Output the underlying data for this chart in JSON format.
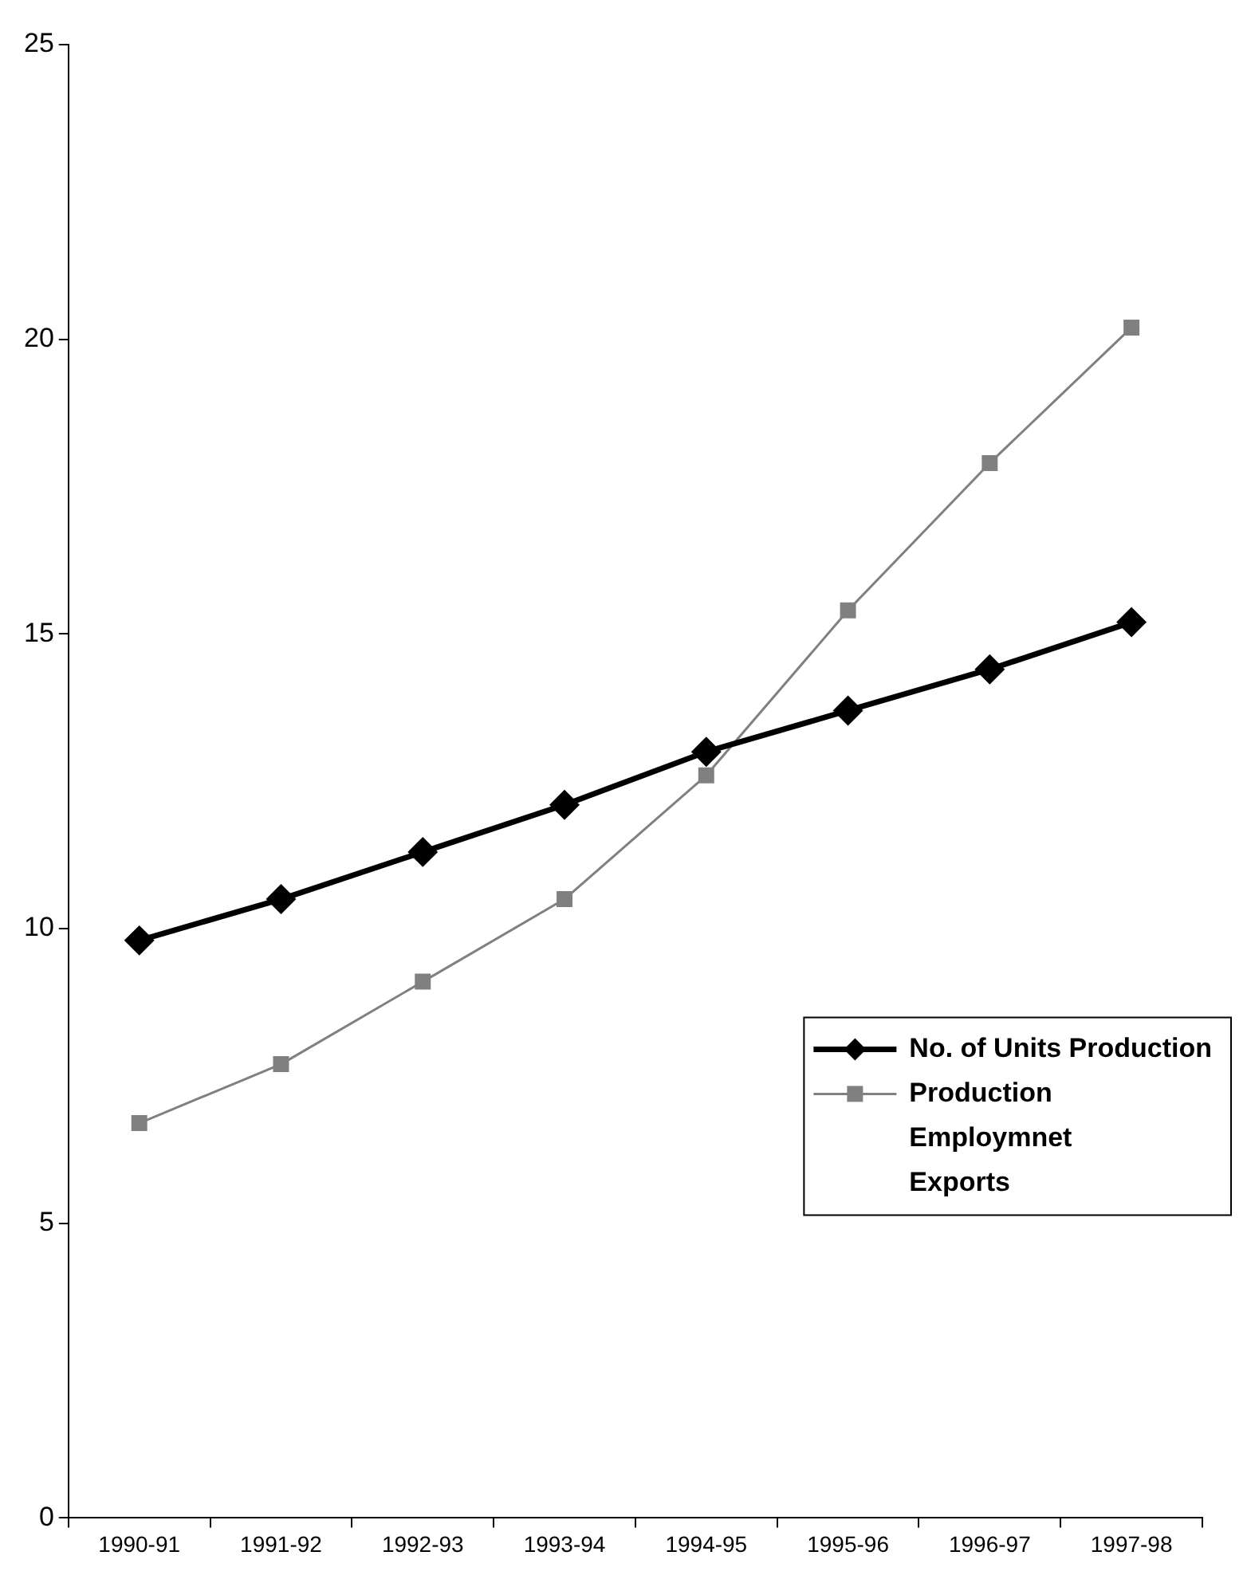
{
  "chart_data": {
    "type": "line",
    "categories": [
      "1990-91",
      "1991-92",
      "1992-93",
      "1993-94",
      "1994-95",
      "1995-96",
      "1996-97",
      "1997-98"
    ],
    "series": [
      {
        "name": "No. of Units Production",
        "color": "#000000",
        "marker": "diamond",
        "values": [
          9.8,
          10.5,
          11.3,
          12.1,
          13.0,
          13.7,
          14.4,
          15.2
        ]
      },
      {
        "name": "Production",
        "color": "#808080",
        "marker": "square",
        "values": [
          6.7,
          7.7,
          9.1,
          10.5,
          12.6,
          15.4,
          17.9,
          20.2
        ]
      },
      {
        "name": "Employmnet",
        "marker": "none",
        "values": [
          null,
          null,
          null,
          null,
          null,
          null,
          null,
          null
        ]
      },
      {
        "name": "Exports",
        "marker": "none",
        "values": [
          null,
          null,
          null,
          null,
          null,
          null,
          null,
          null
        ]
      }
    ],
    "ylim": [
      0,
      25
    ],
    "yticks": [
      0,
      5,
      10,
      15,
      20,
      25
    ],
    "legend": "bottom right"
  }
}
